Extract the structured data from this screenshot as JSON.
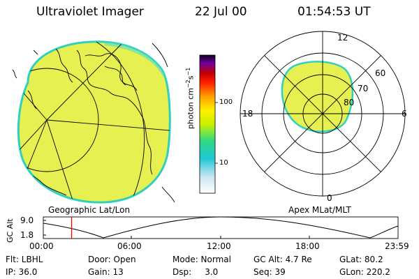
{
  "header": {
    "instrument": "Ultraviolet Imager",
    "date": "22 Jul 00",
    "time": "01:54:53 UT"
  },
  "colorbar": {
    "unit_prefix": "photon cm",
    "unit_exp1": "−2",
    "unit_mid": "s",
    "unit_exp2": "−1",
    "ticks": [
      "100",
      "10"
    ]
  },
  "polar_plot": {
    "mlt_labels": {
      "top": "12",
      "left": "18",
      "right": "6",
      "bottom": "0"
    },
    "lat_labels": [
      "60",
      "70",
      "80"
    ]
  },
  "map_labels": {
    "left": "Geographic Lat/Lon",
    "right": "Apex MLat/MLT"
  },
  "alt_plot": {
    "ylabel": "GC Alt",
    "y_ticks": [
      "9.0",
      "1.8"
    ],
    "x_ticks": [
      "00:00",
      "06:00",
      "12:00",
      "18:00",
      "23:59"
    ],
    "current_time_marker_hours": 1.915
  },
  "info": {
    "row1": {
      "flt": "Flt: LBHL",
      "door": "Door: Open",
      "mode": "Mode: Normal",
      "gcalt": "GC Alt: 4.7 Re",
      "glat": "GLat:  80.2"
    },
    "row2": {
      "ip": "IP: 36.0",
      "gain": "Gain: 13",
      "dsp": "Dsp:     3.0",
      "seq": "Seq: 39",
      "glon": "GLon: 220.2"
    }
  },
  "colors": {
    "disk_fill": "#e6f050",
    "disk_edge": "#30d0c0",
    "marker": "#ff0000"
  }
}
